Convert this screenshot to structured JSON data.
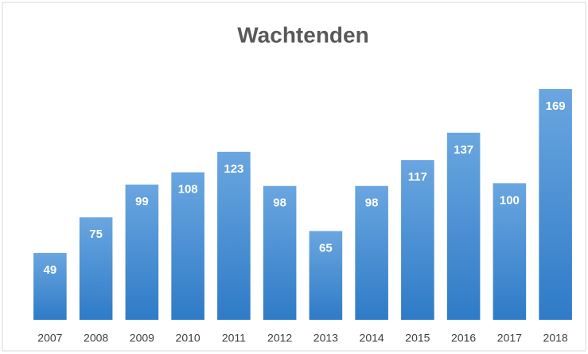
{
  "chart_data": {
    "type": "bar",
    "title": "Wachtenden",
    "categories": [
      "2007",
      "2008",
      "2009",
      "2010",
      "2011",
      "2012",
      "2013",
      "2014",
      "2015",
      "2016",
      "2017",
      "2018"
    ],
    "values": [
      49,
      75,
      99,
      108,
      123,
      98,
      65,
      98,
      117,
      137,
      100,
      169
    ],
    "color": "#4a8fd6",
    "ylim": [
      0,
      180
    ]
  }
}
